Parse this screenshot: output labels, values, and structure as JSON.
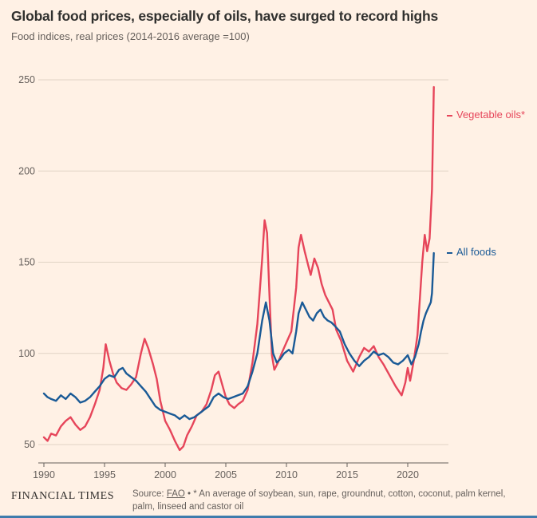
{
  "page": {
    "title": "Global food prices, especially of oils, have surged to record highs",
    "subtitle": "Food indices, real prices (2014-2016 average =100)"
  },
  "footer": {
    "logo": "FINANCIAL TIMES",
    "source_prefix": "Source: ",
    "source_link": "FAO",
    "source_rest": " • * An average of soybean, sun, rape, groundnut, cotton, coconut, palm kernel, palm, linseed and castor oil"
  },
  "colors": {
    "background": "#FFF1E5",
    "grid": "#e0d3c5",
    "axis": "#66605C",
    "vegetable_oils": "#e6455a",
    "all_foods": "#1a5a96"
  },
  "chart_data": {
    "type": "line",
    "title": "Global food prices, especially of oils, have surged to record highs",
    "subtitle": "Food indices, real prices (2014-2016 average =100)",
    "xlabel": "",
    "ylabel": "",
    "xlim": [
      1990,
      2023
    ],
    "ylim": [
      40,
      258
    ],
    "x_ticks": [
      1990,
      1995,
      2000,
      2005,
      2010,
      2015,
      2020
    ],
    "y_ticks": [
      50,
      100,
      150,
      200,
      250
    ],
    "grid": "horizontal",
    "legend_position": "right-annotations",
    "series": [
      {
        "name": "Vegetable oils*",
        "color": "#e6455a",
        "points": [
          [
            1990,
            54
          ],
          [
            1990.3,
            52
          ],
          [
            1990.6,
            56
          ],
          [
            1991,
            55
          ],
          [
            1991.4,
            60
          ],
          [
            1991.8,
            63
          ],
          [
            1992.2,
            65
          ],
          [
            1992.6,
            61
          ],
          [
            1993,
            58
          ],
          [
            1993.4,
            60
          ],
          [
            1993.8,
            65
          ],
          [
            1994.2,
            72
          ],
          [
            1994.6,
            80
          ],
          [
            1994.9,
            92
          ],
          [
            1995.1,
            105
          ],
          [
            1995.4,
            96
          ],
          [
            1995.7,
            89
          ],
          [
            1996,
            84
          ],
          [
            1996.4,
            81
          ],
          [
            1996.8,
            80
          ],
          [
            1997.2,
            83
          ],
          [
            1997.6,
            87
          ],
          [
            1998,
            100
          ],
          [
            1998.3,
            108
          ],
          [
            1998.6,
            103
          ],
          [
            1999,
            94
          ],
          [
            1999.3,
            86
          ],
          [
            1999.6,
            74
          ],
          [
            2000,
            63
          ],
          [
            2000.4,
            58
          ],
          [
            2000.8,
            52
          ],
          [
            2001.2,
            47
          ],
          [
            2001.5,
            49
          ],
          [
            2001.8,
            55
          ],
          [
            2002.2,
            60
          ],
          [
            2002.6,
            66
          ],
          [
            2003,
            68
          ],
          [
            2003.4,
            72
          ],
          [
            2003.8,
            80
          ],
          [
            2004.1,
            88
          ],
          [
            2004.4,
            90
          ],
          [
            2004.7,
            83
          ],
          [
            2005,
            76
          ],
          [
            2005.3,
            72
          ],
          [
            2005.7,
            70
          ],
          [
            2006,
            72
          ],
          [
            2006.4,
            74
          ],
          [
            2006.8,
            80
          ],
          [
            2007.2,
            95
          ],
          [
            2007.6,
            116
          ],
          [
            2008,
            152
          ],
          [
            2008.2,
            173
          ],
          [
            2008.4,
            166
          ],
          [
            2008.6,
            132
          ],
          [
            2008.8,
            99
          ],
          [
            2009,
            91
          ],
          [
            2009.3,
            95
          ],
          [
            2009.6,
            100
          ],
          [
            2010,
            106
          ],
          [
            2010.4,
            112
          ],
          [
            2010.8,
            136
          ],
          [
            2011,
            158
          ],
          [
            2011.2,
            165
          ],
          [
            2011.5,
            156
          ],
          [
            2011.8,
            148
          ],
          [
            2012,
            143
          ],
          [
            2012.3,
            152
          ],
          [
            2012.6,
            147
          ],
          [
            2012.9,
            138
          ],
          [
            2013.2,
            132
          ],
          [
            2013.5,
            128
          ],
          [
            2013.8,
            124
          ],
          [
            2014.1,
            113
          ],
          [
            2014.5,
            107
          ],
          [
            2015,
            96
          ],
          [
            2015.5,
            90
          ],
          [
            2016,
            98
          ],
          [
            2016.4,
            103
          ],
          [
            2016.8,
            101
          ],
          [
            2017.2,
            104
          ],
          [
            2017.6,
            98
          ],
          [
            2018,
            94
          ],
          [
            2018.5,
            88
          ],
          [
            2019,
            82
          ],
          [
            2019.5,
            77
          ],
          [
            2019.8,
            84
          ],
          [
            2020,
            92
          ],
          [
            2020.2,
            85
          ],
          [
            2020.5,
            96
          ],
          [
            2020.8,
            110
          ],
          [
            2021,
            130
          ],
          [
            2021.2,
            150
          ],
          [
            2021.4,
            165
          ],
          [
            2021.6,
            156
          ],
          [
            2021.8,
            163
          ],
          [
            2022,
            190
          ],
          [
            2022.15,
            246
          ]
        ]
      },
      {
        "name": "All foods",
        "color": "#1a5a96",
        "points": [
          [
            1990,
            78
          ],
          [
            1990.3,
            76
          ],
          [
            1990.6,
            75
          ],
          [
            1991,
            74
          ],
          [
            1991.4,
            77
          ],
          [
            1991.8,
            75
          ],
          [
            1992.2,
            78
          ],
          [
            1992.6,
            76
          ],
          [
            1993,
            73
          ],
          [
            1993.4,
            74
          ],
          [
            1993.8,
            76
          ],
          [
            1994.2,
            79
          ],
          [
            1994.6,
            82
          ],
          [
            1995,
            86
          ],
          [
            1995.4,
            88
          ],
          [
            1995.8,
            87
          ],
          [
            1996.2,
            91
          ],
          [
            1996.5,
            92
          ],
          [
            1996.8,
            89
          ],
          [
            1997.2,
            87
          ],
          [
            1997.6,
            85
          ],
          [
            1998,
            82
          ],
          [
            1998.4,
            79
          ],
          [
            1998.8,
            75
          ],
          [
            1999.2,
            71
          ],
          [
            1999.6,
            69
          ],
          [
            2000,
            68
          ],
          [
            2000.4,
            67
          ],
          [
            2000.8,
            66
          ],
          [
            2001.2,
            64
          ],
          [
            2001.6,
            66
          ],
          [
            2002,
            64
          ],
          [
            2002.4,
            65
          ],
          [
            2002.8,
            67
          ],
          [
            2003.2,
            69
          ],
          [
            2003.6,
            71
          ],
          [
            2004,
            76
          ],
          [
            2004.4,
            78
          ],
          [
            2004.8,
            76
          ],
          [
            2005.2,
            75
          ],
          [
            2005.6,
            76
          ],
          [
            2006,
            77
          ],
          [
            2006.4,
            78
          ],
          [
            2006.8,
            82
          ],
          [
            2007.2,
            90
          ],
          [
            2007.6,
            100
          ],
          [
            2008,
            118
          ],
          [
            2008.3,
            128
          ],
          [
            2008.6,
            118
          ],
          [
            2008.9,
            100
          ],
          [
            2009.2,
            95
          ],
          [
            2009.5,
            97
          ],
          [
            2009.8,
            100
          ],
          [
            2010.2,
            102
          ],
          [
            2010.5,
            100
          ],
          [
            2010.8,
            112
          ],
          [
            2011,
            122
          ],
          [
            2011.3,
            128
          ],
          [
            2011.6,
            124
          ],
          [
            2011.9,
            120
          ],
          [
            2012.2,
            118
          ],
          [
            2012.5,
            122
          ],
          [
            2012.8,
            124
          ],
          [
            2013.1,
            120
          ],
          [
            2013.4,
            118
          ],
          [
            2013.7,
            117
          ],
          [
            2014,
            115
          ],
          [
            2014.4,
            112
          ],
          [
            2014.8,
            105
          ],
          [
            2015.2,
            100
          ],
          [
            2015.6,
            96
          ],
          [
            2016,
            93
          ],
          [
            2016.4,
            96
          ],
          [
            2016.8,
            98
          ],
          [
            2017.2,
            101
          ],
          [
            2017.6,
            99
          ],
          [
            2018,
            100
          ],
          [
            2018.4,
            98
          ],
          [
            2018.8,
            95
          ],
          [
            2019.2,
            94
          ],
          [
            2019.6,
            96
          ],
          [
            2020,
            99
          ],
          [
            2020.3,
            94
          ],
          [
            2020.6,
            98
          ],
          [
            2020.9,
            105
          ],
          [
            2021.1,
            112
          ],
          [
            2021.3,
            118
          ],
          [
            2021.5,
            122
          ],
          [
            2021.7,
            125
          ],
          [
            2021.9,
            128
          ],
          [
            2022,
            133
          ],
          [
            2022.15,
            155
          ]
        ]
      }
    ]
  }
}
